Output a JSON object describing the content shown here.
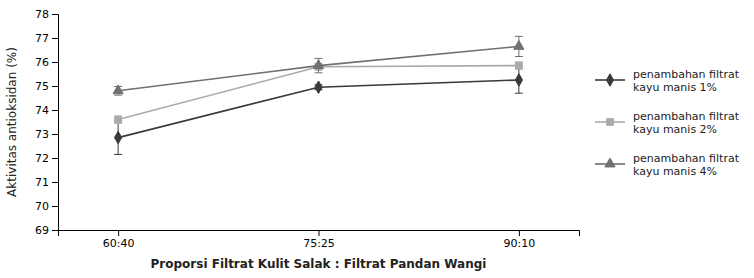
{
  "chart_data": {
    "type": "line",
    "categories": [
      "60:40",
      "75:25",
      "90:10"
    ],
    "xlabel": "Proporsi Filtrat Kulit Salak : Filtrat Pandan Wangi",
    "ylabel": "Aktivitas antioksidan (%)",
    "series": [
      {
        "name": "penambahan filtrat\nkayu manis 1%",
        "color": "#3a3a3a",
        "marker": "diamond",
        "line_style": "solid",
        "values": [
          72.85,
          74.95,
          75.25
        ],
        "errors": [
          0.7,
          0.1,
          0.55
        ]
      },
      {
        "name": "penambahan filtrat\nkayu manis 2%",
        "color": "#aaaaaa",
        "marker": "square",
        "line_style": "solid",
        "values": [
          73.6,
          75.8,
          75.85
        ],
        "errors": [
          0.15,
          0.12,
          0.15
        ]
      },
      {
        "name": "penambahan filtrat\nkayu manis 4%",
        "color": "#707070",
        "marker": "triangle",
        "line_style": "solid",
        "values": [
          74.8,
          75.85,
          76.65
        ],
        "errors": [
          0.18,
          0.3,
          0.42
        ]
      }
    ],
    "ylim": [
      69,
      78
    ],
    "yticks": [
      69,
      70,
      71,
      72,
      73,
      74,
      75,
      76,
      77,
      78
    ],
    "grid": false,
    "legend": "right"
  }
}
